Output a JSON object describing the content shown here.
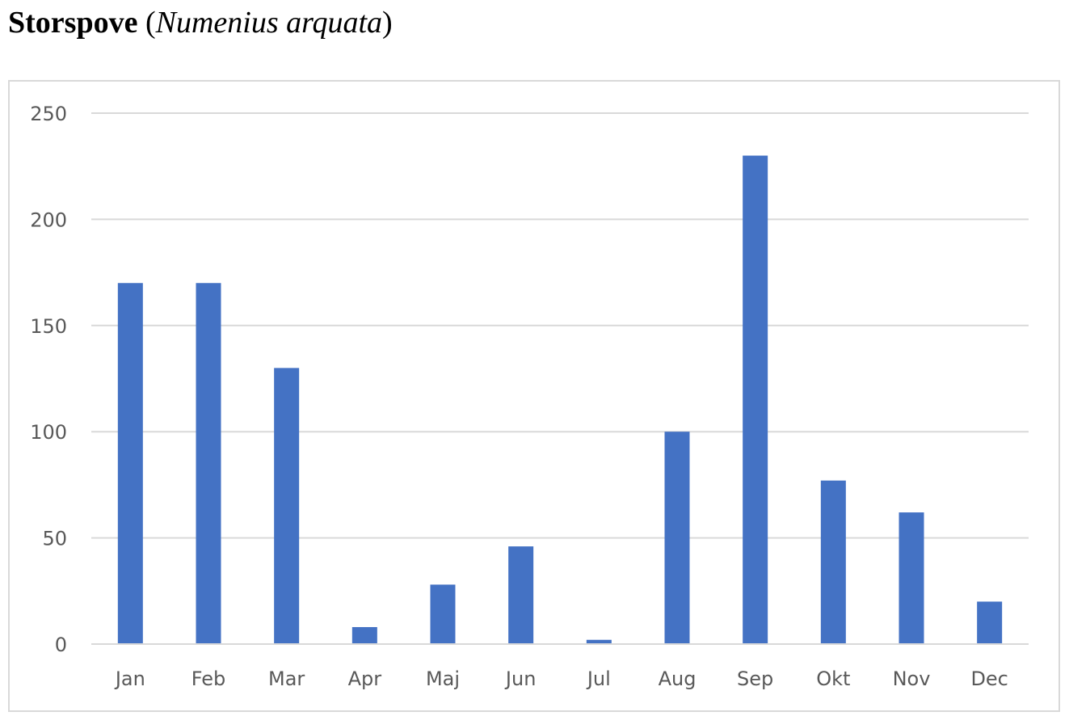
{
  "title": {
    "common_name": "Storspove",
    "paren_open": " (",
    "latin_name": "Numenius arquata",
    "paren_close": ")"
  },
  "chart_data": {
    "type": "bar",
    "categories": [
      "Jan",
      "Feb",
      "Mar",
      "Apr",
      "Maj",
      "Jun",
      "Jul",
      "Aug",
      "Sep",
      "Okt",
      "Nov",
      "Dec"
    ],
    "values": [
      170,
      170,
      130,
      8,
      28,
      46,
      2,
      100,
      230,
      77,
      62,
      20
    ],
    "ylim": [
      0,
      250
    ],
    "yticks": [
      0,
      50,
      100,
      150,
      200,
      250
    ],
    "grid": true,
    "legend": "none",
    "bar_color": "#4472c4"
  }
}
